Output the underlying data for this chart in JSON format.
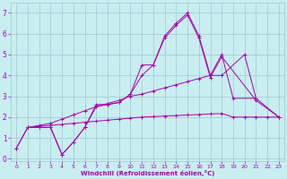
{
  "background_color": "#c8eef0",
  "grid_color": "#9dc8d0",
  "line_color": "#aa00aa",
  "xlabel": "Windchill (Refroidissement éolien,°C)",
  "xlim": [
    -0.5,
    23.5
  ],
  "ylim": [
    -0.1,
    7.5
  ],
  "xticks": [
    0,
    1,
    2,
    3,
    4,
    5,
    6,
    7,
    8,
    9,
    10,
    11,
    12,
    13,
    14,
    15,
    16,
    17,
    18,
    19,
    20,
    21,
    22,
    23
  ],
  "yticks": [
    0,
    1,
    2,
    3,
    4,
    5,
    6,
    7
  ],
  "series": [
    {
      "x": [
        0,
        1,
        2,
        3,
        4,
        5,
        6,
        7,
        8,
        9,
        10,
        11,
        12,
        13,
        14,
        15,
        16,
        17,
        18,
        21,
        23
      ],
      "y": [
        0.5,
        1.5,
        1.5,
        1.5,
        0.2,
        0.8,
        1.5,
        2.6,
        2.6,
        2.7,
        3.1,
        4.0,
        4.5,
        5.8,
        6.4,
        6.9,
        5.8,
        3.9,
        4.9,
        2.8,
        2.0
      ]
    },
    {
      "x": [
        0,
        1,
        2,
        3,
        4,
        5,
        6,
        7,
        8,
        9,
        10,
        11,
        12,
        13,
        14,
        15,
        16,
        17,
        18,
        19,
        21,
        23
      ],
      "y": [
        0.5,
        1.5,
        1.5,
        1.5,
        0.2,
        0.8,
        1.5,
        2.5,
        2.6,
        2.7,
        3.1,
        4.5,
        4.5,
        5.9,
        6.5,
        7.0,
        5.9,
        4.0,
        5.0,
        2.9,
        2.9,
        2.0
      ]
    },
    {
      "x": [
        1,
        2,
        3,
        4,
        5,
        6,
        7,
        8,
        9,
        10,
        11,
        12,
        13,
        14,
        15,
        16,
        17,
        18,
        20,
        21
      ],
      "y": [
        1.5,
        1.6,
        1.7,
        1.9,
        2.1,
        2.3,
        2.5,
        2.65,
        2.8,
        3.0,
        3.1,
        3.25,
        3.4,
        3.55,
        3.7,
        3.85,
        4.0,
        4.0,
        5.0,
        2.9
      ]
    },
    {
      "x": [
        1,
        2,
        3,
        4,
        5,
        6,
        7,
        8,
        9,
        10,
        11,
        12,
        13,
        14,
        15,
        16,
        17,
        18,
        19,
        20,
        21,
        22,
        23
      ],
      "y": [
        1.5,
        1.55,
        1.6,
        1.65,
        1.7,
        1.75,
        1.8,
        1.85,
        1.9,
        1.95,
        2.0,
        2.02,
        2.05,
        2.07,
        2.1,
        2.12,
        2.15,
        2.17,
        2.0,
        2.0,
        2.0,
        2.0,
        2.0
      ]
    }
  ]
}
